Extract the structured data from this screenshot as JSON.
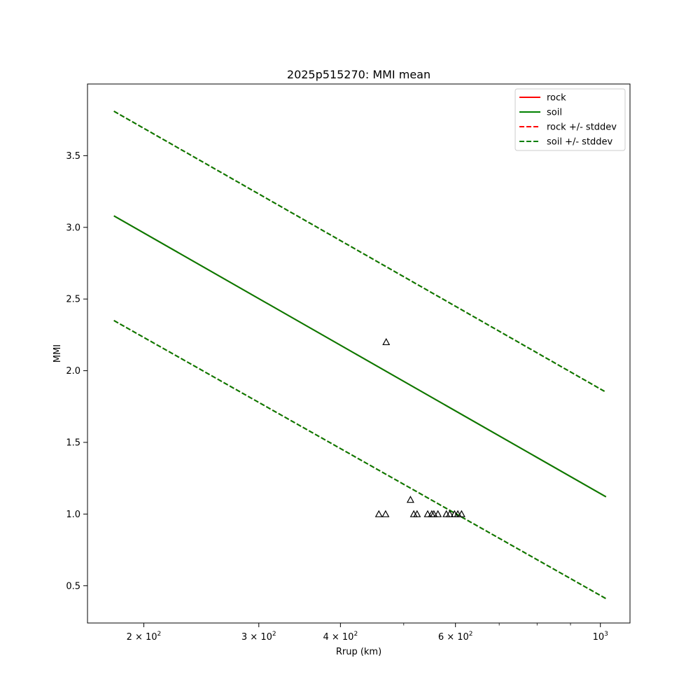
{
  "chart_data": {
    "type": "line",
    "title": "2025p515270: MMI mean",
    "xlabel": "Rrup (km)",
    "ylabel": "MMI",
    "xscale": "log",
    "xlim": [
      164,
      1110
    ],
    "ylim": [
      0.24,
      4.0
    ],
    "grid": false,
    "legend_position": "top-right",
    "x_major_ticks": [
      {
        "value": 200,
        "label": "2 × 10²",
        "mantissa": "2",
        "exp": "2"
      },
      {
        "value": 300,
        "label": "3 × 10²",
        "mantissa": "3",
        "exp": "2"
      },
      {
        "value": 400,
        "label": "4 × 10²",
        "mantissa": "4",
        "exp": "2"
      },
      {
        "value": 600,
        "label": "6 × 10²",
        "mantissa": "6",
        "exp": "2"
      },
      {
        "value": 1000,
        "label": "10³",
        "mantissa": "",
        "exp": "3"
      }
    ],
    "x_minor_ticks": [
      500,
      700,
      800,
      900
    ],
    "y_ticks": [
      {
        "value": 0.5,
        "label": "0.5"
      },
      {
        "value": 1.0,
        "label": "1.0"
      },
      {
        "value": 1.5,
        "label": "1.5"
      },
      {
        "value": 2.0,
        "label": "2.0"
      },
      {
        "value": 2.5,
        "label": "2.5"
      },
      {
        "value": 3.0,
        "label": "3.0"
      },
      {
        "value": 3.5,
        "label": "3.5"
      }
    ],
    "series": [
      {
        "name": "rock",
        "color": "#ff0000",
        "style": "solid",
        "x": [
          180,
          1020
        ],
        "y": [
          3.08,
          1.12
        ]
      },
      {
        "name": "soil",
        "color": "#008000",
        "style": "solid",
        "x": [
          180,
          1020
        ],
        "y": [
          3.08,
          1.12
        ]
      },
      {
        "name": "rock +/- stddev",
        "color": "#ff0000",
        "style": "dashed",
        "x": [
          180,
          1020
        ],
        "y": [
          3.81,
          1.85
        ]
      },
      {
        "name": "rock +/- stddev",
        "color": "#ff0000",
        "style": "dashed",
        "x": [
          180,
          1020
        ],
        "y": [
          2.35,
          0.41
        ],
        "legend": false
      },
      {
        "name": "soil +/- stddev",
        "color": "#008000",
        "style": "dashed",
        "x": [
          180,
          1020
        ],
        "y": [
          3.81,
          1.85
        ]
      },
      {
        "name": "soil +/- stddev",
        "color": "#008000",
        "style": "dashed",
        "x": [
          180,
          1020
        ],
        "y": [
          2.35,
          0.41
        ],
        "legend": false
      }
    ],
    "observations": {
      "marker": "triangle",
      "color": "#000000",
      "points": [
        {
          "x": 470,
          "y": 2.2
        },
        {
          "x": 512,
          "y": 1.1
        },
        {
          "x": 458,
          "y": 1.0
        },
        {
          "x": 469,
          "y": 1.0
        },
        {
          "x": 518,
          "y": 1.0
        },
        {
          "x": 524,
          "y": 1.0
        },
        {
          "x": 544,
          "y": 1.0
        },
        {
          "x": 552,
          "y": 1.0
        },
        {
          "x": 556,
          "y": 1.0
        },
        {
          "x": 564,
          "y": 1.0
        },
        {
          "x": 581,
          "y": 1.0
        },
        {
          "x": 588,
          "y": 1.0
        },
        {
          "x": 598,
          "y": 1.0
        },
        {
          "x": 605,
          "y": 1.0
        },
        {
          "x": 613,
          "y": 1.0
        }
      ]
    }
  }
}
